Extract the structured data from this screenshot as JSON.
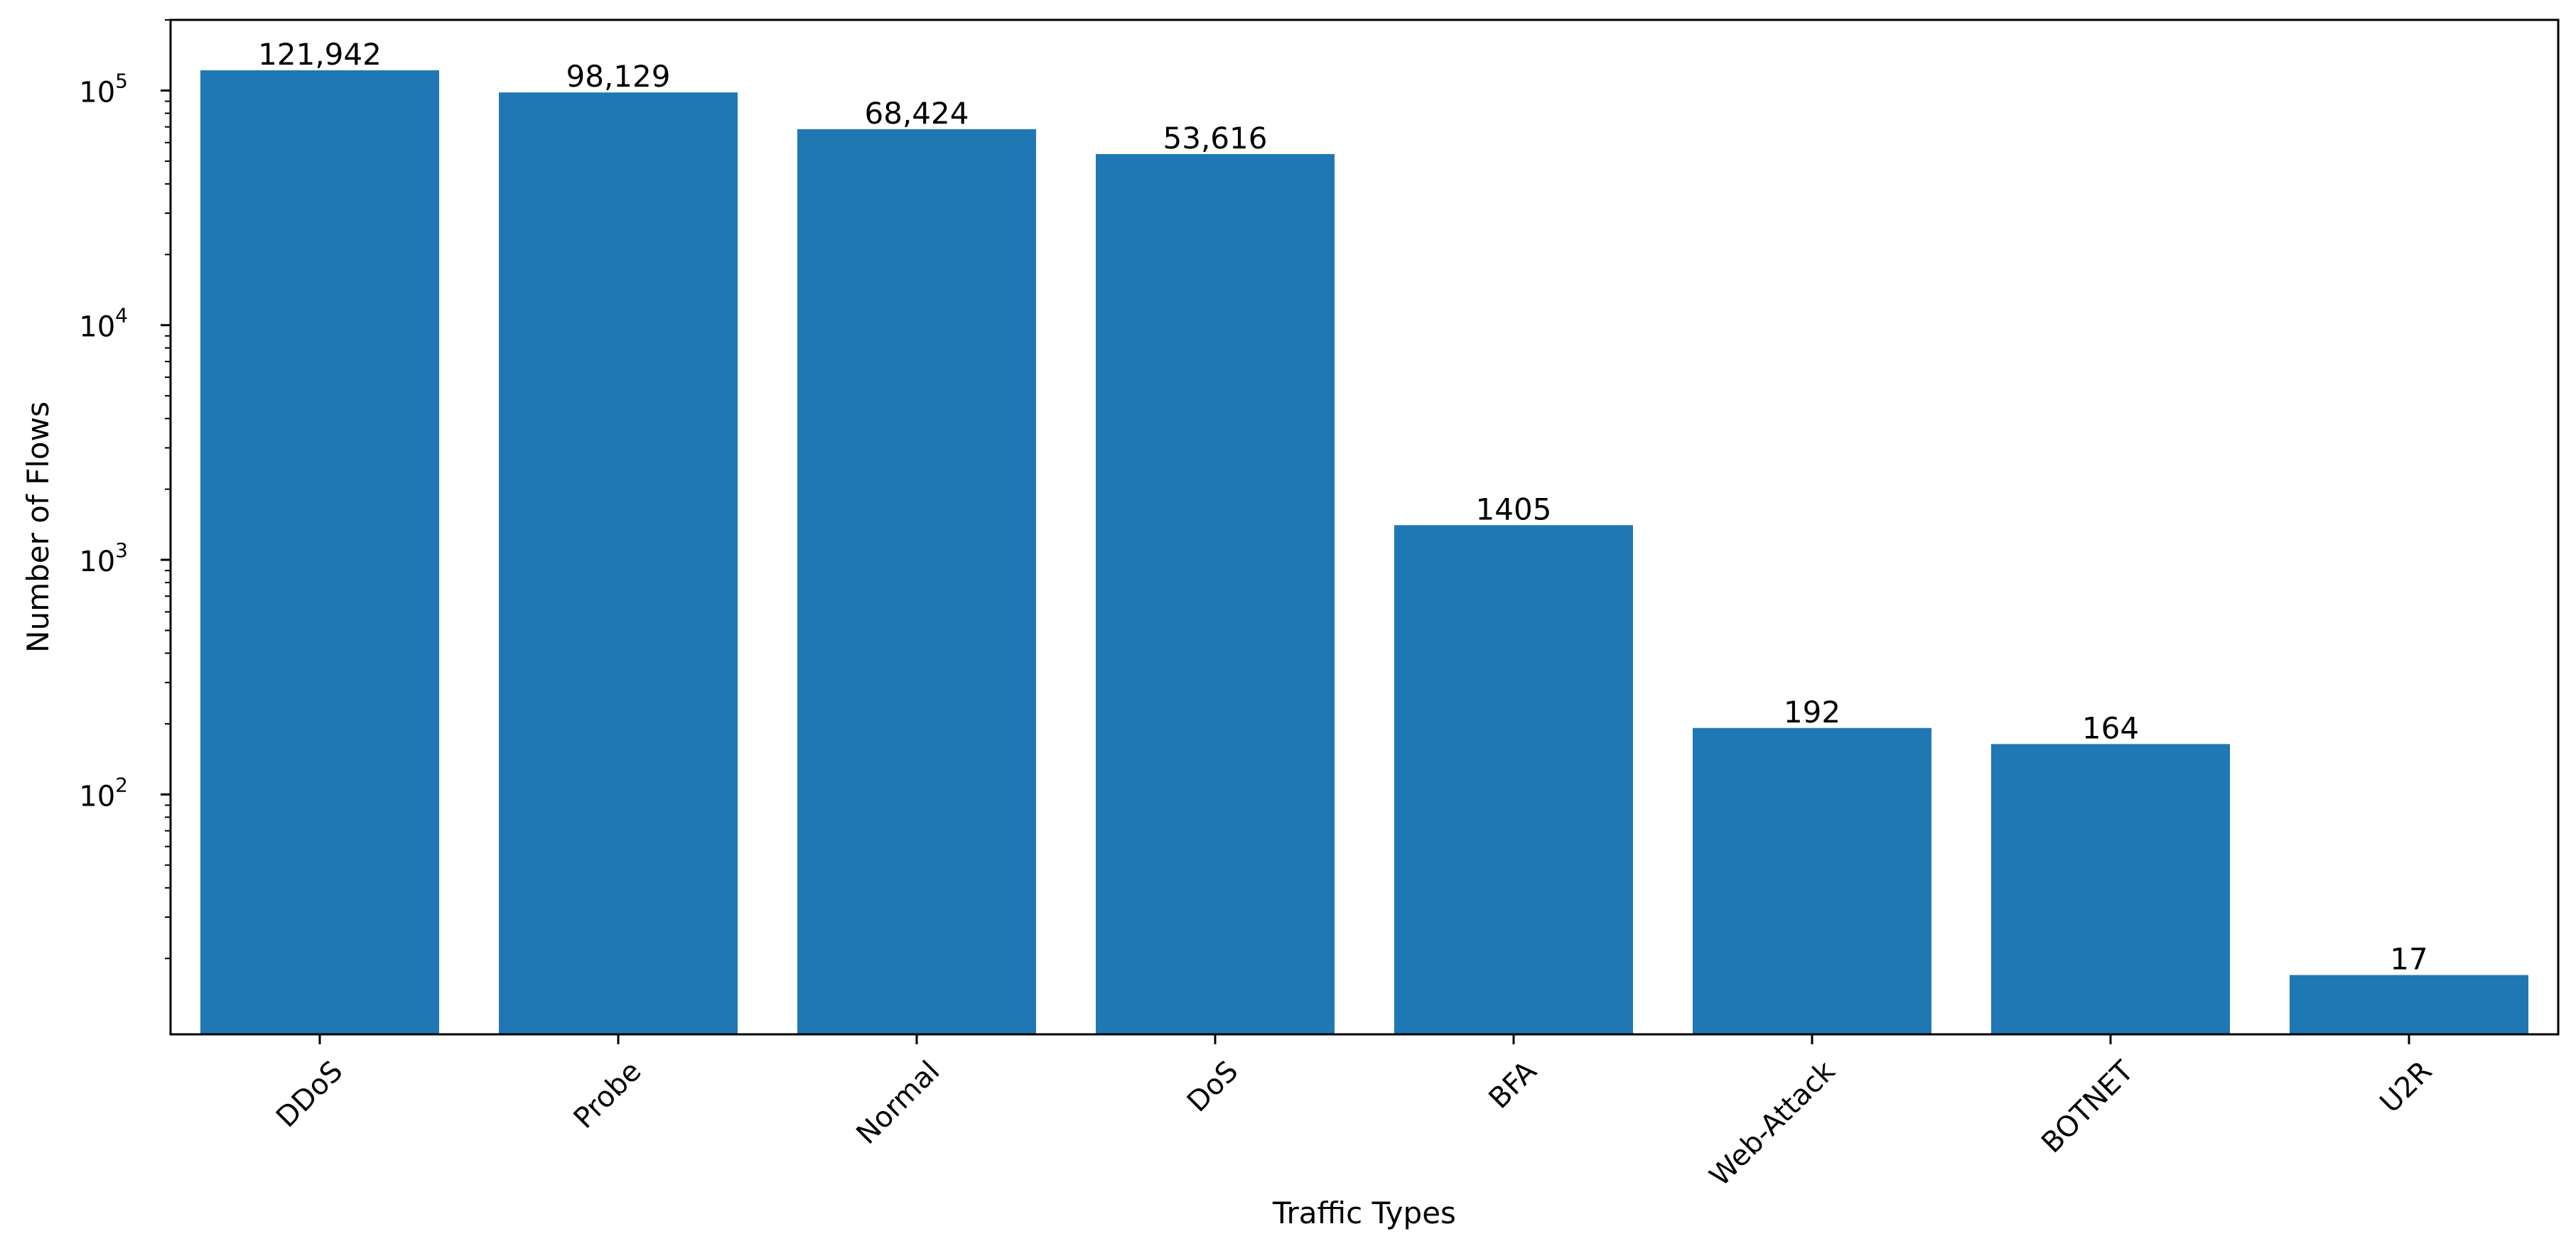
{
  "chart_data": {
    "type": "bar",
    "categories": [
      "DDoS",
      "Probe",
      "Normal",
      "DoS",
      "BFA",
      "Web-Attack",
      "BOTNET",
      "U2R"
    ],
    "values": [
      121942,
      98129,
      68424,
      53616,
      1405,
      192,
      164,
      17
    ],
    "value_labels": [
      "121,942",
      "98,129",
      "68,424",
      "53,616",
      "1405",
      "192",
      "164",
      "17"
    ],
    "title": "",
    "xlabel": "Traffic Types",
    "ylabel": "Number of Flows",
    "yscale": "log",
    "ylim": [
      9.5,
      200000
    ],
    "yticks": [
      {
        "value": 100,
        "base": "10",
        "exp": "2"
      },
      {
        "value": 1000,
        "base": "10",
        "exp": "3"
      },
      {
        "value": 10000,
        "base": "10",
        "exp": "4"
      },
      {
        "value": 100000,
        "base": "10",
        "exp": "5"
      }
    ],
    "bar_color": "#1f77b4",
    "grid": false,
    "legend": "none"
  }
}
